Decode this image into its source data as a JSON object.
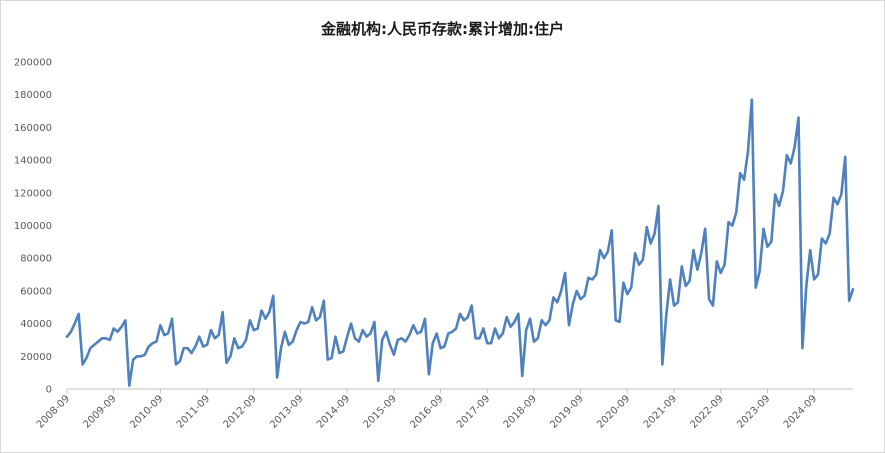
{
  "chart_data": {
    "type": "line",
    "title": "金融机构:人民币存款:累计增加:住户",
    "xlabel": "",
    "ylabel": "",
    "ylim": [
      0,
      200000
    ],
    "yticks": [
      "0",
      "20000",
      "40000",
      "60000",
      "80000",
      "100000",
      "120000",
      "140000",
      "160000",
      "180000",
      "200000"
    ],
    "xticks": [
      "2008-09",
      "2009-09",
      "2010-09",
      "2011-09",
      "2012-09",
      "2013-09",
      "2014-09",
      "2015-09",
      "2016-09",
      "2017-09",
      "2018-09",
      "2019-09",
      "2020-09",
      "2021-09",
      "2022-09",
      "2023-09",
      "2024-09"
    ],
    "grid": false,
    "legend": "none",
    "line_color": "#4f81bd",
    "series": [
      {
        "values": [
          32000,
          35000,
          40000,
          46000,
          15000,
          19000,
          25000,
          27000,
          29000,
          31000,
          31000,
          30000,
          37000,
          35000,
          38000,
          42000,
          2000,
          18000,
          20000,
          20000,
          21000,
          26000,
          28000,
          29000,
          39000,
          33000,
          34000,
          43000,
          15000,
          17000,
          25000,
          25000,
          22000,
          26000,
          32000,
          26000,
          27000,
          36000,
          31000,
          33000,
          47000,
          16000,
          20000,
          31000,
          25000,
          26000,
          30000,
          42000,
          36000,
          37000,
          48000,
          43000,
          47000,
          57000,
          7000,
          25000,
          35000,
          27000,
          29000,
          36000,
          41000,
          40000,
          41000,
          50000,
          42000,
          44000,
          54000,
          18000,
          19000,
          32000,
          22000,
          23000,
          32000,
          40000,
          31000,
          29000,
          36000,
          32000,
          34000,
          41000,
          5000,
          30000,
          35000,
          27000,
          21000,
          30000,
          31000,
          29000,
          33000,
          39000,
          34000,
          35000,
          43000,
          9000,
          28000,
          34000,
          25000,
          26000,
          34000,
          35000,
          37000,
          46000,
          42000,
          44000,
          51000,
          31000,
          31000,
          37000,
          28000,
          28000,
          37000,
          31000,
          34000,
          44000,
          38000,
          41000,
          46000,
          8000,
          36000,
          43000,
          29000,
          31000,
          42000,
          39000,
          42000,
          56000,
          53000,
          60000,
          71000,
          39000,
          52000,
          60000,
          55000,
          57000,
          68000,
          67000,
          70000,
          85000,
          80000,
          84000,
          97000,
          42000,
          41000,
          65000,
          58000,
          62000,
          83000,
          76000,
          79000,
          99000,
          89000,
          95000,
          112000,
          15000,
          45000,
          67000,
          51000,
          53000,
          75000,
          63000,
          66000,
          85000,
          73000,
          83000,
          98000,
          55000,
          51000,
          78000,
          71000,
          76000,
          102000,
          100000,
          108000,
          132000,
          128000,
          145000,
          177000,
          62000,
          72000,
          98000,
          87000,
          90000,
          119000,
          112000,
          121000,
          143000,
          138000,
          148000,
          166000,
          25000,
          63000,
          85000,
          67000,
          70000,
          92000,
          89000,
          95000,
          117000,
          113000,
          119000,
          142000,
          54000,
          61000
        ]
      }
    ]
  }
}
